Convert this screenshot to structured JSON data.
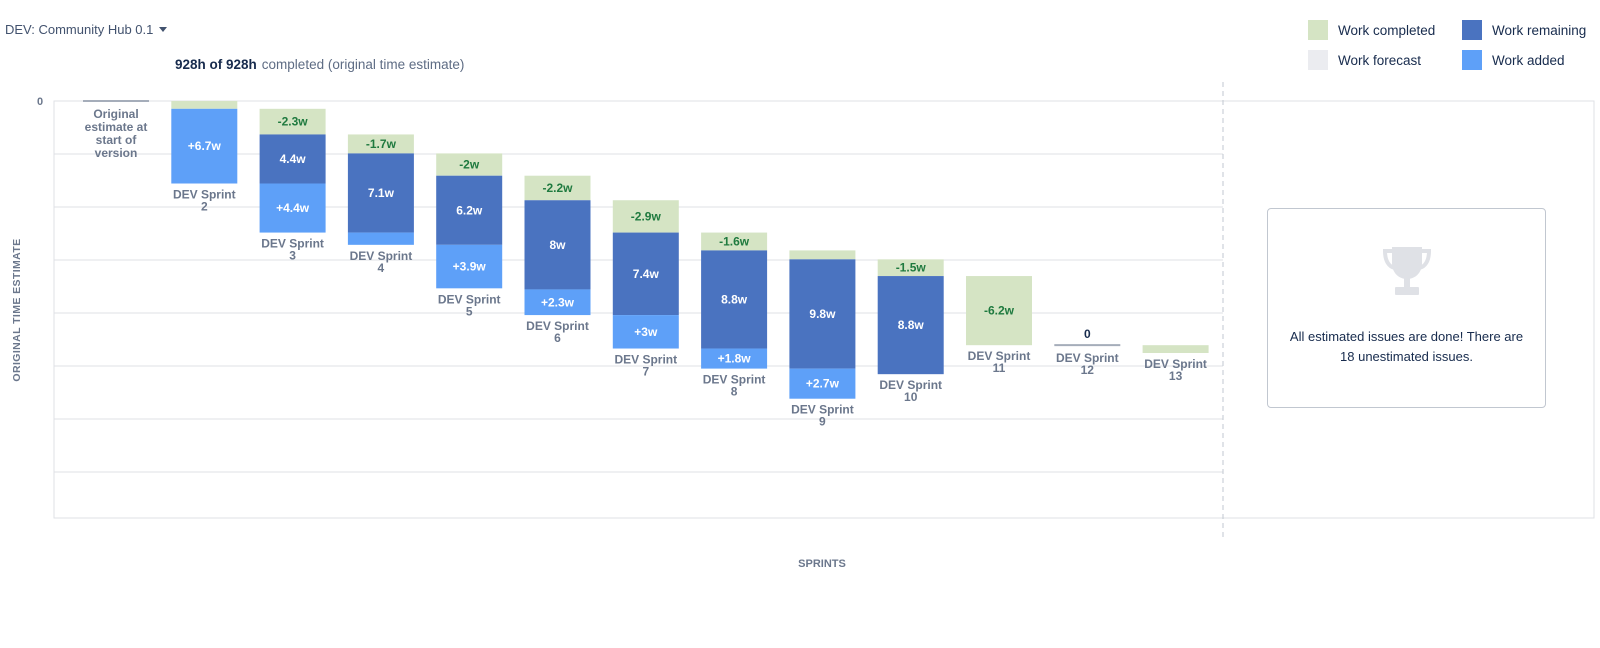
{
  "header": {
    "version_label": "DEV: Community Hub 0.1",
    "summary_bold": "928h of 928h",
    "summary_rest": "completed (original time estimate)"
  },
  "legend": {
    "completed": "Work completed",
    "remaining": "Work remaining",
    "forecast": "Work forecast",
    "added": "Work added"
  },
  "colors": {
    "completed": "#d5e4c4",
    "remaining": "#4a73c0",
    "added": "#5ea0f8",
    "forecast": "#ebecf0",
    "completed_text": "#1f7a3f",
    "gridline": "#dfe1e6"
  },
  "empty_state": {
    "icon": "trophy-icon",
    "text": "All estimated issues are done! There are 18 unestimated issues."
  },
  "chart_data": {
    "type": "bar",
    "subtype": "version-report-waterfall",
    "ylabel": "ORIGINAL TIME ESTIMATE",
    "xlabel": "SPRINTS",
    "y_tick_labels": [
      "0"
    ],
    "unit": "w",
    "grid": true,
    "legend_position": "top-right",
    "categories": [
      "Original estimate at start of version",
      "DEV Sprint 2",
      "DEV Sprint 3",
      "DEV Sprint 4",
      "DEV Sprint 5",
      "DEV Sprint 6",
      "DEV Sprint 7",
      "DEV Sprint 8",
      "DEV Sprint 9",
      "DEV Sprint 10",
      "DEV Sprint 11",
      "DEV Sprint 12",
      "DEV Sprint 13"
    ],
    "bars": [
      {
        "category": "Original estimate at start of version",
        "completed": 0,
        "remaining": 0,
        "added": 0,
        "labels": {}
      },
      {
        "category": "DEV Sprint 2",
        "completed": 0.7,
        "remaining": 0,
        "added": 6.7,
        "labels": {
          "added": "+6.7w"
        }
      },
      {
        "category": "DEV Sprint 3",
        "completed": 2.3,
        "remaining": 4.4,
        "added": 4.4,
        "labels": {
          "completed": "-2.3w",
          "remaining": "4.4w",
          "added": "+4.4w"
        }
      },
      {
        "category": "DEV Sprint 4",
        "completed": 1.7,
        "remaining": 7.1,
        "added": 1.1,
        "labels": {
          "completed": "-1.7w",
          "remaining": "7.1w"
        }
      },
      {
        "category": "DEV Sprint 5",
        "completed": 2.0,
        "remaining": 6.2,
        "added": 3.9,
        "labels": {
          "completed": "-2w",
          "remaining": "6.2w",
          "added": "+3.9w"
        }
      },
      {
        "category": "DEV Sprint 6",
        "completed": 2.2,
        "remaining": 8.0,
        "added": 2.3,
        "labels": {
          "completed": "-2.2w",
          "remaining": "8w",
          "added": "+2.3w"
        }
      },
      {
        "category": "DEV Sprint 7",
        "completed": 2.9,
        "remaining": 7.4,
        "added": 3.0,
        "labels": {
          "completed": "-2.9w",
          "remaining": "7.4w",
          "added": "+3w"
        }
      },
      {
        "category": "DEV Sprint 8",
        "completed": 1.6,
        "remaining": 8.8,
        "added": 1.8,
        "labels": {
          "completed": "-1.6w",
          "remaining": "8.8w",
          "added": "+1.8w"
        }
      },
      {
        "category": "DEV Sprint 9",
        "completed": 0.8,
        "remaining": 9.8,
        "added": 2.7,
        "labels": {
          "remaining": "9.8w",
          "added": "+2.7w"
        }
      },
      {
        "category": "DEV Sprint 10",
        "completed": 1.5,
        "remaining": 8.8,
        "added": 0,
        "labels": {
          "completed": "-1.5w",
          "remaining": "8.8w"
        }
      },
      {
        "category": "DEV Sprint 11",
        "completed": 6.2,
        "remaining": 0,
        "added": 0,
        "labels": {
          "completed": "-6.2w"
        }
      },
      {
        "category": "DEV Sprint 12",
        "completed": 0,
        "remaining": 0,
        "added": 0,
        "labels": {
          "total": "0"
        }
      },
      {
        "category": "DEV Sprint 13",
        "completed": 0.7,
        "remaining": 0,
        "added": 0,
        "labels": {}
      }
    ]
  }
}
